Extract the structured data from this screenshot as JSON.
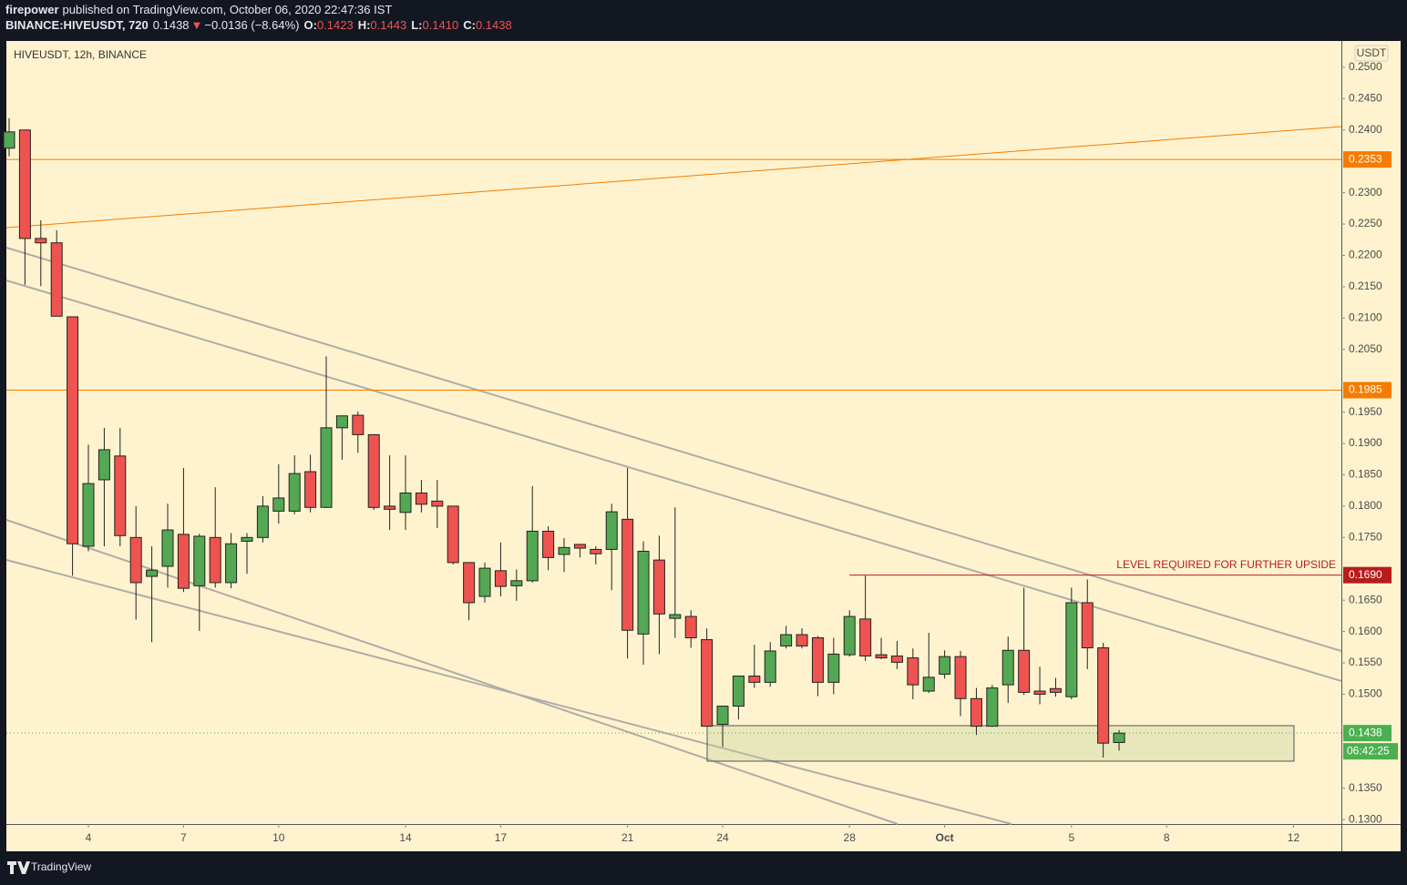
{
  "header": {
    "publisher": "firepower",
    "published": "published on TradingView.com, October 06, 2020 22:47:36 IST",
    "symbol": "BINANCE:HIVEUSDT, 720",
    "last": "0.1438",
    "direction": "▼",
    "change": "−0.0136 (−8.64%)",
    "o_label": "O:",
    "o": "0.1423",
    "h_label": "H:",
    "h": "0.1443",
    "l_label": "L:",
    "l": "0.1410",
    "c_label": "C:",
    "c": "0.1438"
  },
  "footer": "TradingView",
  "chart_data": {
    "type": "candlestick",
    "title": "HIVEUSDT, 12h, BINANCE",
    "y_axis_label": "USDT",
    "up_color": "#53a853",
    "down_color": "#ef5350",
    "x": [
      1.5,
      2,
      2.5,
      3,
      3.5,
      4,
      4.5,
      5,
      5.5,
      6,
      6.5,
      7,
      7.5,
      8,
      8.5,
      9,
      9.5,
      10,
      10.5,
      11,
      11.5,
      12,
      12.5,
      13,
      13.5,
      14,
      14.5,
      15,
      15.5,
      16,
      16.5,
      17,
      17.5,
      18,
      18.5,
      19,
      19.5,
      20,
      20.5,
      21,
      21.5,
      22,
      22.5,
      23,
      23.5,
      24,
      24.5,
      25,
      25.5,
      26,
      26.5,
      27,
      27.5,
      28,
      28.5,
      29,
      29.5,
      30,
      30.5,
      31,
      31.5,
      32,
      32.5,
      33,
      33.5,
      34,
      34.5,
      35,
      35.5,
      36,
      36.5
    ],
    "open": [
      0.2371,
      0.24,
      0.2227,
      0.222,
      0.2102,
      0.1736,
      0.1842,
      0.188,
      0.175,
      0.1688,
      0.1704,
      0.1755,
      0.1673,
      0.175,
      0.1678,
      0.1744,
      0.175,
      0.1792,
      0.1792,
      0.1855,
      0.1798,
      0.1925,
      0.1945,
      0.1914,
      0.18,
      0.179,
      0.1821,
      0.1808,
      0.18,
      0.171,
      0.1656,
      0.1697,
      0.1673,
      0.1681,
      0.176,
      0.1723,
      0.1739,
      0.1731,
      0.1731,
      0.1779,
      0.1596,
      0.1714,
      0.1621,
      0.1624,
      0.1587,
      0.1452,
      0.1481,
      0.1529,
      0.1519,
      0.1577,
      0.1595,
      0.159,
      0.1519,
      0.1563,
      0.162,
      0.1563,
      0.1561,
      0.1558,
      0.1505,
      0.1532,
      0.156,
      0.1493,
      0.1449,
      0.1515,
      0.157,
      0.1505,
      0.1509,
      0.1496,
      0.1646,
      0.1574,
      0.1423
    ],
    "high": [
      0.2419,
      0.24,
      0.2256,
      0.224,
      0.2102,
      0.1898,
      0.1925,
      0.1925,
      0.18,
      0.1736,
      0.1804,
      0.1861,
      0.1756,
      0.183,
      0.1757,
      0.1757,
      0.1816,
      0.1867,
      0.1881,
      0.1882,
      0.2039,
      0.1944,
      0.1951,
      0.1914,
      0.1881,
      0.1881,
      0.1842,
      0.1842,
      0.18,
      0.171,
      0.171,
      0.1742,
      0.1699,
      0.1832,
      0.1768,
      0.1749,
      0.1739,
      0.1736,
      0.1804,
      0.1861,
      0.1744,
      0.1753,
      0.1798,
      0.1634,
      0.1605,
      0.1481,
      0.1529,
      0.1579,
      0.1583,
      0.1609,
      0.1605,
      0.1593,
      0.159,
      0.1634,
      0.1689,
      0.159,
      0.1585,
      0.1573,
      0.1598,
      0.157,
      0.1569,
      0.151,
      0.1515,
      0.1592,
      0.167,
      0.1544,
      0.1526,
      0.167,
      0.1683,
      0.1582,
      0.1443
    ],
    "low": [
      0.2358,
      0.2153,
      0.2151,
      0.2103,
      0.1689,
      0.1728,
      0.1736,
      0.1736,
      0.1619,
      0.1583,
      0.167,
      0.1663,
      0.1601,
      0.167,
      0.1669,
      0.1692,
      0.1742,
      0.1772,
      0.1787,
      0.179,
      0.1797,
      0.1874,
      0.1885,
      0.1794,
      0.1762,
      0.1762,
      0.179,
      0.1765,
      0.1707,
      0.1618,
      0.1646,
      0.1656,
      0.1649,
      0.1678,
      0.1698,
      0.1695,
      0.1718,
      0.1707,
      0.1666,
      0.1557,
      0.1547,
      0.1564,
      0.159,
      0.1574,
      0.1449,
      0.1416,
      0.146,
      0.151,
      0.1512,
      0.1573,
      0.1573,
      0.1497,
      0.15,
      0.156,
      0.1553,
      0.1556,
      0.154,
      0.1492,
      0.1502,
      0.1525,
      0.1465,
      0.1435,
      0.1448,
      0.1486,
      0.1499,
      0.1484,
      0.1496,
      0.1492,
      0.154,
      0.1399,
      0.141
    ],
    "close": [
      0.2397,
      0.2227,
      0.222,
      0.2103,
      0.174,
      0.1836,
      0.189,
      0.1753,
      0.1678,
      0.1698,
      0.1762,
      0.1669,
      0.1752,
      0.1678,
      0.174,
      0.175,
      0.18,
      0.1813,
      0.1852,
      0.1798,
      0.1925,
      0.1944,
      0.1914,
      0.1798,
      0.1795,
      0.1821,
      0.1803,
      0.18,
      0.171,
      0.1646,
      0.1701,
      0.1672,
      0.1681,
      0.176,
      0.1718,
      0.1734,
      0.1733,
      0.1724,
      0.1791,
      0.1602,
      0.1728,
      0.1628,
      0.1627,
      0.159,
      0.1449,
      0.1481,
      0.1529,
      0.1519,
      0.1569,
      0.1595,
      0.1577,
      0.1519,
      0.1564,
      0.1624,
      0.1561,
      0.1558,
      0.1551,
      0.1515,
      0.1527,
      0.156,
      0.1493,
      0.1449,
      0.151,
      0.157,
      0.1503,
      0.15,
      0.1503,
      0.1646,
      0.1574,
      0.1422,
      0.1438
    ],
    "xlim": [
      1.414,
      43.51
    ],
    "xticks": [
      4,
      7,
      10,
      14,
      17,
      21,
      24,
      28,
      {
        "value": 31,
        "label": "Oct"
      },
      {
        "value": 35,
        "label": "5"
      },
      {
        "value": 38,
        "label": "8"
      },
      {
        "value": 42,
        "label": "12"
      }
    ],
    "ylim": [
      0.1293,
      0.2542
    ],
    "yticks": [
      {
        "value": 0.25,
        "label": "0.2500"
      },
      {
        "value": 0.245,
        "label": "0.2450"
      },
      {
        "value": 0.24,
        "label": "0.2400"
      },
      {
        "value": 0.23,
        "label": "0.2300"
      },
      {
        "value": 0.225,
        "label": "0.2250"
      },
      {
        "value": 0.22,
        "label": "0.2200"
      },
      {
        "value": 0.215,
        "label": "0.2150"
      },
      {
        "value": 0.21,
        "label": "0.2100"
      },
      {
        "value": 0.205,
        "label": "0.2050"
      },
      {
        "value": 0.195,
        "label": "0.1950"
      },
      {
        "value": 0.19,
        "label": "0.1900"
      },
      {
        "value": 0.185,
        "label": "0.1850"
      },
      {
        "value": 0.18,
        "label": "0.1800"
      },
      {
        "value": 0.175,
        "label": "0.1750"
      },
      {
        "value": 0.165,
        "label": "0.1650"
      },
      {
        "value": 0.16,
        "label": "0.1600"
      },
      {
        "value": 0.155,
        "label": "0.1550"
      },
      {
        "value": 0.15,
        "label": "0.1500"
      },
      {
        "value": 0.135,
        "label": "0.1350"
      },
      {
        "value": 0.13,
        "label": "0.1300"
      }
    ],
    "grid": false,
    "levels": [
      {
        "value": 0.2353,
        "label": "0.2353",
        "color": "#f57c00",
        "style": "solid"
      },
      {
        "value": 0.1985,
        "label": "0.1985",
        "color": "#f57c00",
        "style": "solid"
      },
      {
        "value": 0.169,
        "label": "0.1690",
        "color": "#b71c1c",
        "style": "partial"
      },
      {
        "value": 0.1438,
        "label": "0.1438",
        "color": "#4caf50",
        "style": "dotted"
      }
    ],
    "annotation": "LEVEL REQUIRED FOR FURTHER UPSIDE",
    "countdown": "06:42:25"
  }
}
